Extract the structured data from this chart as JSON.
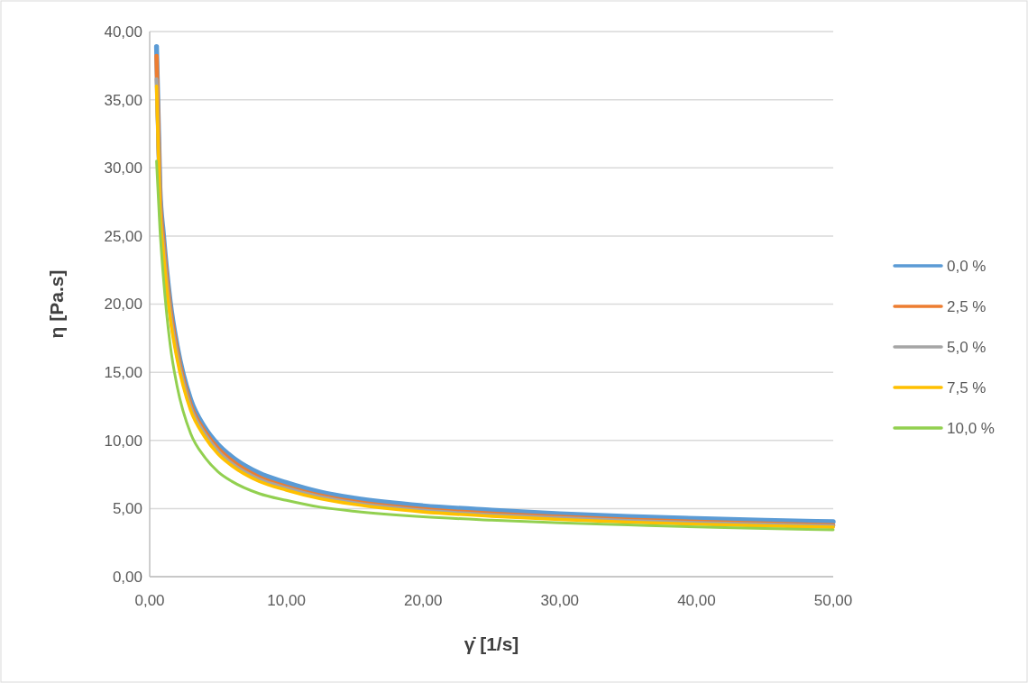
{
  "chart_data": {
    "type": "line",
    "xlabel": "γ̇  [1/s]",
    "ylabel": "η [Pa.s]",
    "x": [
      0.5,
      0.75,
      1,
      1.5,
      2,
      3,
      4,
      5,
      6,
      8,
      10,
      12.5,
      15,
      20,
      25,
      30,
      35,
      40,
      45,
      50
    ],
    "series": [
      {
        "name": "0,0 %",
        "color": "#5b9bd5",
        "values": [
          38.9,
          28.5,
          25.2,
          20.2,
          17,
          13,
          11,
          9.7,
          8.8,
          7.6,
          6.9,
          6.2,
          5.75,
          5.2,
          4.88,
          4.62,
          4.42,
          4.26,
          4.13,
          4.03
        ]
      },
      {
        "name": "2,5 %",
        "color": "#ed7d31",
        "values": [
          38.2,
          28,
          24.6,
          19.7,
          16.6,
          12.6,
          10.7,
          9.4,
          8.5,
          7.3,
          6.6,
          5.95,
          5.5,
          4.95,
          4.62,
          4.38,
          4.18,
          4.02,
          3.89,
          3.77
        ]
      },
      {
        "name": "5,0 %",
        "color": "#a5a5a5",
        "values": [
          36.5,
          27.3,
          24.1,
          19.3,
          16.3,
          12.4,
          10.5,
          9.2,
          8.3,
          7.15,
          6.5,
          5.85,
          5.4,
          4.85,
          4.53,
          4.3,
          4.1,
          3.94,
          3.82,
          3.71
        ]
      },
      {
        "name": "7,5 %",
        "color": "#ffc000",
        "values": [
          36,
          27,
          23.8,
          19,
          16,
          12.2,
          10.3,
          9,
          8.15,
          7,
          6.35,
          5.72,
          5.3,
          4.75,
          4.44,
          4.2,
          4,
          3.85,
          3.73,
          3.63
        ]
      },
      {
        "name": "10,0 %",
        "color": "#92d050",
        "values": [
          30.5,
          25.5,
          22,
          17,
          14,
          10.5,
          8.8,
          7.7,
          7,
          6.1,
          5.6,
          5.1,
          4.8,
          4.4,
          4.15,
          3.95,
          3.8,
          3.65,
          3.54,
          3.44
        ]
      }
    ],
    "xlim": [
      0,
      50
    ],
    "xticks": [
      {
        "value": 0,
        "label": "0,00"
      },
      {
        "value": 10,
        "label": "10,00"
      },
      {
        "value": 20,
        "label": "20,00"
      },
      {
        "value": 30,
        "label": "30,00"
      },
      {
        "value": 40,
        "label": "40,00"
      },
      {
        "value": 50,
        "label": "50,00"
      }
    ],
    "ylim": [
      0,
      40
    ],
    "yticks": [
      {
        "value": 0,
        "label": "0,00"
      },
      {
        "value": 5,
        "label": "5,00"
      },
      {
        "value": 10,
        "label": "10,00"
      },
      {
        "value": 15,
        "label": "15,00"
      },
      {
        "value": 20,
        "label": "20,00"
      },
      {
        "value": 25,
        "label": "25,00"
      },
      {
        "value": 30,
        "label": "30,00"
      },
      {
        "value": 35,
        "label": "35,00"
      },
      {
        "value": 40,
        "label": "40,00"
      }
    ],
    "grid": "y",
    "legend": "right",
    "marker": "none",
    "line_style": "solid"
  }
}
